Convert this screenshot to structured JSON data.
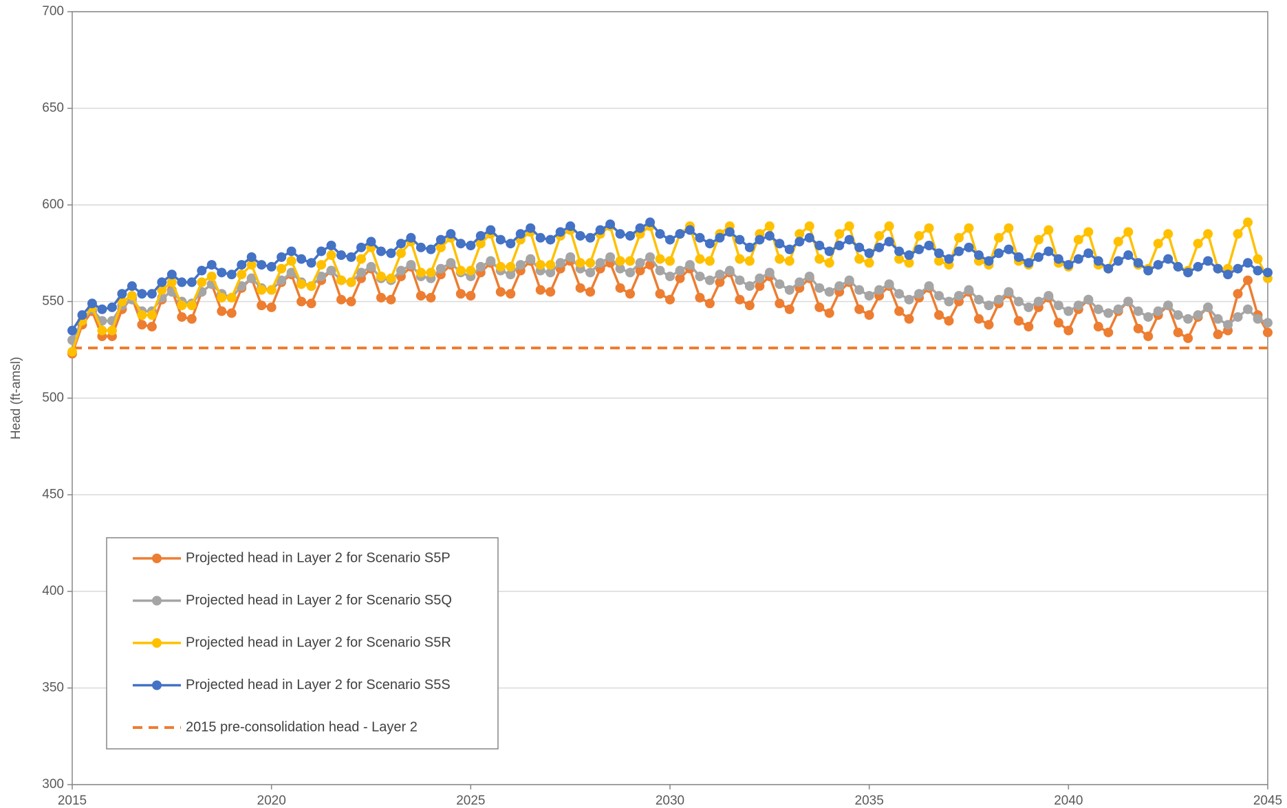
{
  "chart_data": {
    "type": "line",
    "y_label": "Head (ft-amsl)",
    "xlim": [
      2015,
      2045
    ],
    "xticks": [
      2015,
      2020,
      2025,
      2030,
      2035,
      2040,
      2045
    ],
    "ylim": [
      300,
      700
    ],
    "yticks": [
      300,
      350,
      400,
      450,
      500,
      550,
      600,
      650,
      700
    ],
    "grid": true,
    "x": [
      2015,
      2015.25,
      2015.5,
      2015.75,
      2016,
      2016.25,
      2016.5,
      2016.75,
      2017,
      2017.25,
      2017.5,
      2017.75,
      2018,
      2018.25,
      2018.5,
      2018.75,
      2019,
      2019.25,
      2019.5,
      2019.75,
      2020,
      2020.25,
      2020.5,
      2020.75,
      2021,
      2021.25,
      2021.5,
      2021.75,
      2022,
      2022.25,
      2022.5,
      2022.75,
      2023,
      2023.25,
      2023.5,
      2023.75,
      2024,
      2024.25,
      2024.5,
      2024.75,
      2025,
      2025.25,
      2025.5,
      2025.75,
      2026,
      2026.25,
      2026.5,
      2026.75,
      2027,
      2027.25,
      2027.5,
      2027.75,
      2028,
      2028.25,
      2028.5,
      2028.75,
      2029,
      2029.25,
      2029.5,
      2029.75,
      2030,
      2030.25,
      2030.5,
      2030.75,
      2031,
      2031.25,
      2031.5,
      2031.75,
      2032,
      2032.25,
      2032.5,
      2032.75,
      2033,
      2033.25,
      2033.5,
      2033.75,
      2034,
      2034.25,
      2034.5,
      2034.75,
      2035,
      2035.25,
      2035.5,
      2035.75,
      2036,
      2036.25,
      2036.5,
      2036.75,
      2037,
      2037.25,
      2037.5,
      2037.75,
      2038,
      2038.25,
      2038.5,
      2038.75,
      2039,
      2039.25,
      2039.5,
      2039.75,
      2040,
      2040.25,
      2040.5,
      2040.75,
      2041,
      2041.25,
      2041.5,
      2041.75,
      2042,
      2042.25,
      2042.5,
      2042.75,
      2043,
      2043.25,
      2043.5,
      2043.75,
      2044,
      2044.25,
      2044.5,
      2044.75,
      2045
    ],
    "series": [
      {
        "name": "Projected head in Layer 2 for Scenario S5P",
        "color": "#ed7d31",
        "values": [
          523,
          538,
          545,
          532,
          532,
          546,
          552,
          538,
          537,
          551,
          556,
          542,
          541,
          555,
          559,
          545,
          544,
          557,
          562,
          548,
          547,
          560,
          564,
          550,
          549,
          561,
          566,
          551,
          550,
          562,
          567,
          552,
          551,
          563,
          568,
          553,
          552,
          564,
          569,
          554,
          553,
          565,
          570,
          555,
          554,
          566,
          571,
          556,
          555,
          567,
          571,
          557,
          555,
          567,
          570,
          557,
          554,
          566,
          569,
          554,
          551,
          562,
          567,
          552,
          549,
          560,
          565,
          551,
          548,
          558,
          563,
          549,
          546,
          557,
          562,
          547,
          544,
          555,
          560,
          546,
          543,
          553,
          558,
          545,
          541,
          552,
          557,
          543,
          540,
          550,
          555,
          541,
          538,
          549,
          554,
          540,
          537,
          547,
          552,
          539,
          535,
          546,
          551,
          537,
          534,
          545,
          550,
          536,
          532,
          543,
          548,
          534,
          531,
          542,
          547,
          533,
          535,
          554,
          561,
          543,
          534
        ]
      },
      {
        "name": "Projected head in Layer 2 for Scenario S5Q",
        "color": "#a5a5a5",
        "values": [
          530,
          540,
          546,
          540,
          540,
          548,
          551,
          545,
          545,
          552,
          555,
          550,
          549,
          555,
          559,
          554,
          552,
          558,
          562,
          557,
          556,
          561,
          565,
          560,
          558,
          563,
          566,
          561,
          560,
          565,
          568,
          562,
          561,
          566,
          569,
          563,
          562,
          567,
          570,
          565,
          563,
          568,
          571,
          566,
          564,
          569,
          572,
          566,
          565,
          570,
          573,
          567,
          565,
          570,
          573,
          567,
          565,
          570,
          573,
          566,
          563,
          566,
          569,
          563,
          561,
          564,
          566,
          561,
          558,
          562,
          565,
          559,
          556,
          560,
          563,
          557,
          555,
          558,
          561,
          556,
          553,
          556,
          559,
          554,
          551,
          554,
          558,
          553,
          550,
          553,
          556,
          551,
          548,
          551,
          555,
          550,
          547,
          550,
          553,
          548,
          545,
          548,
          551,
          546,
          544,
          546,
          550,
          545,
          542,
          545,
          548,
          543,
          541,
          543,
          547,
          541,
          538,
          542,
          546,
          541,
          539
        ]
      },
      {
        "name": "Projected head in Layer 2 for Scenario S5R",
        "color": "#ffc000",
        "values": [
          524,
          540,
          547,
          535,
          535,
          550,
          553,
          543,
          543,
          556,
          560,
          548,
          548,
          560,
          563,
          552,
          552,
          564,
          569,
          556,
          556,
          567,
          571,
          559,
          558,
          569,
          574,
          561,
          560,
          572,
          578,
          563,
          562,
          575,
          581,
          565,
          565,
          578,
          583,
          566,
          566,
          580,
          585,
          568,
          568,
          582,
          586,
          569,
          569,
          584,
          587,
          570,
          570,
          585,
          589,
          571,
          571,
          585,
          589,
          572,
          571,
          585,
          589,
          572,
          571,
          585,
          589,
          572,
          571,
          585,
          589,
          572,
          571,
          585,
          589,
          572,
          570,
          585,
          589,
          572,
          570,
          584,
          589,
          572,
          570,
          584,
          588,
          571,
          569,
          583,
          588,
          571,
          569,
          583,
          588,
          571,
          569,
          582,
          587,
          570,
          568,
          582,
          586,
          569,
          567,
          581,
          586,
          569,
          567,
          580,
          585,
          568,
          566,
          580,
          585,
          567,
          567,
          585,
          591,
          572,
          562
        ]
      },
      {
        "name": "Projected head in Layer 2 for Scenario S5S",
        "color": "#4472c4",
        "values": [
          535,
          543,
          549,
          546,
          547,
          554,
          558,
          554,
          554,
          560,
          564,
          560,
          560,
          566,
          569,
          565,
          564,
          569,
          573,
          569,
          568,
          573,
          576,
          572,
          570,
          576,
          579,
          574,
          573,
          578,
          581,
          576,
          575,
          580,
          583,
          578,
          577,
          582,
          585,
          580,
          579,
          584,
          587,
          582,
          580,
          585,
          588,
          583,
          582,
          586,
          589,
          584,
          583,
          587,
          590,
          585,
          584,
          588,
          591,
          585,
          582,
          585,
          587,
          583,
          580,
          583,
          586,
          582,
          578,
          582,
          584,
          580,
          577,
          581,
          583,
          579,
          576,
          579,
          582,
          578,
          575,
          578,
          581,
          576,
          574,
          577,
          579,
          575,
          572,
          576,
          578,
          574,
          571,
          575,
          577,
          573,
          570,
          573,
          576,
          572,
          569,
          572,
          575,
          571,
          567,
          571,
          574,
          570,
          566,
          569,
          572,
          568,
          565,
          568,
          571,
          567,
          564,
          567,
          570,
          566,
          565
        ]
      }
    ],
    "reference_line": {
      "name": "2015 pre-consolidation head - Layer 2",
      "value": 526,
      "color": "#ed7d31",
      "dashed": true
    }
  }
}
